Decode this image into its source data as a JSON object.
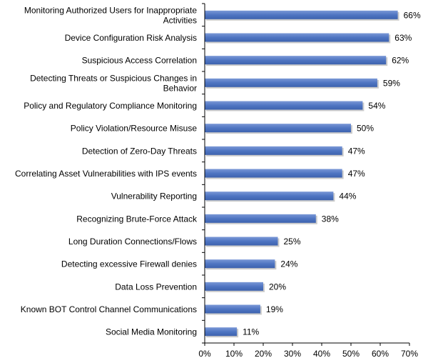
{
  "chart_data": {
    "type": "bar",
    "orientation": "horizontal",
    "title": "",
    "xlabel": "",
    "ylabel": "",
    "xlim": [
      0,
      70
    ],
    "ticks": [
      "0%",
      "10%",
      "20%",
      "30%",
      "40%",
      "50%",
      "60%",
      "70%"
    ],
    "tick_values": [
      0,
      10,
      20,
      30,
      40,
      50,
      60,
      70
    ],
    "grid": false,
    "legend": "none",
    "bar_color": "#4F75C2",
    "bar_shadow_color": "#A0A0A0",
    "categories": [
      [
        "Monitoring Authorized Users for Inappropriate",
        "Activities"
      ],
      [
        "Device Configuration Risk Analysis"
      ],
      [
        "Suspicious Access Correlation"
      ],
      [
        "Detecting Threats or Suspicious Changes in",
        "Behavior"
      ],
      [
        "Policy and Regulatory Compliance Monitoring"
      ],
      [
        "Policy Violation/Resource Misuse"
      ],
      [
        "Detection of Zero-Day Threats"
      ],
      [
        "Correlating Asset Vulnerabilities with IPS events"
      ],
      [
        "Vulnerability Reporting"
      ],
      [
        "Recognizing Brute-Force Attack"
      ],
      [
        "Long Duration Connections/Flows"
      ],
      [
        "Detecting excessive Firewall denies"
      ],
      [
        "Data Loss Prevention"
      ],
      [
        "Known BOT Control Channel Communications"
      ],
      [
        "Social Media Monitoring"
      ]
    ],
    "values": [
      66,
      63,
      62,
      59,
      54,
      50,
      47,
      47,
      44,
      38,
      25,
      24,
      20,
      19,
      11
    ],
    "value_labels": [
      "66%",
      "63%",
      "62%",
      "59%",
      "54%",
      "50%",
      "47%",
      "47%",
      "44%",
      "38%",
      "25%",
      "24%",
      "20%",
      "19%",
      "11%"
    ]
  }
}
